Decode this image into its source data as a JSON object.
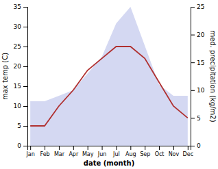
{
  "chart_data": {
    "type": "line",
    "categories": [
      "Jan",
      "Feb",
      "Mar",
      "Apr",
      "May",
      "Jun",
      "Jul",
      "Aug",
      "Sep",
      "Oct",
      "Nov",
      "Dec"
    ],
    "series": [
      {
        "type": "area",
        "axis": "y2",
        "color": "#b0b8e8",
        "values": [
          8,
          8,
          9,
          10,
          13,
          16,
          22,
          25,
          18,
          11,
          9,
          9
        ]
      },
      {
        "type": "line",
        "color": "#b03030",
        "values": [
          5,
          5,
          10,
          14,
          19,
          22,
          25,
          25,
          22,
          16,
          10,
          7
        ]
      }
    ],
    "xlabel": "date (month)",
    "ylabel": "max temp (C)",
    "y2label": "med. precipitation (kg/m2)",
    "ylim": [
      0,
      35
    ],
    "yticks": [
      0,
      5,
      10,
      15,
      20,
      25,
      30,
      35
    ],
    "y2lim": [
      0,
      25
    ],
    "y2ticks": [
      0,
      5,
      10,
      15,
      20,
      25
    ],
    "grid": false
  }
}
